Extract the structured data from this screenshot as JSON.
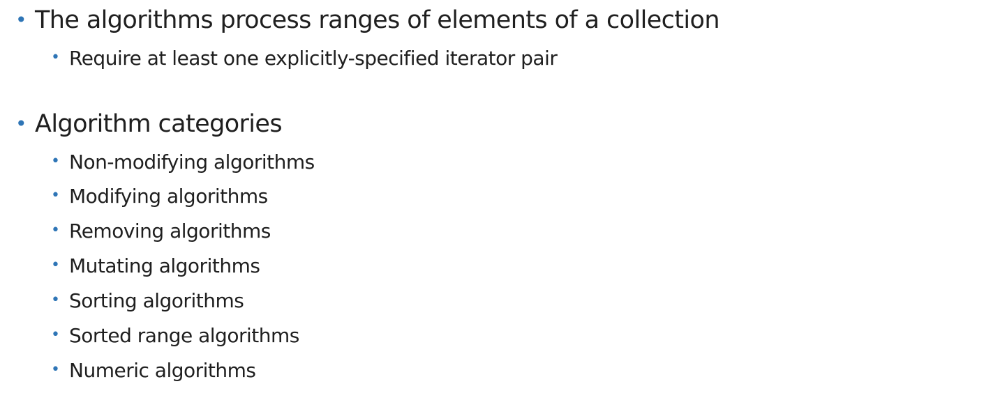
{
  "bullets": [
    {
      "text": "The algorithms process ranges of elements of a collection",
      "sub": [
        "Require at least one explicitly-specified iterator pair"
      ]
    },
    {
      "text": "Algorithm categories",
      "sub": [
        "Non-modifying algorithms",
        "Modifying algorithms",
        "Removing algorithms",
        "Mutating algorithms",
        "Sorting algorithms",
        "Sorted range algorithms",
        "Numeric algorithms"
      ]
    }
  ],
  "colors": {
    "bullet": "#2e75b6",
    "text": "#1f1f1f",
    "background": "#ffffff"
  }
}
